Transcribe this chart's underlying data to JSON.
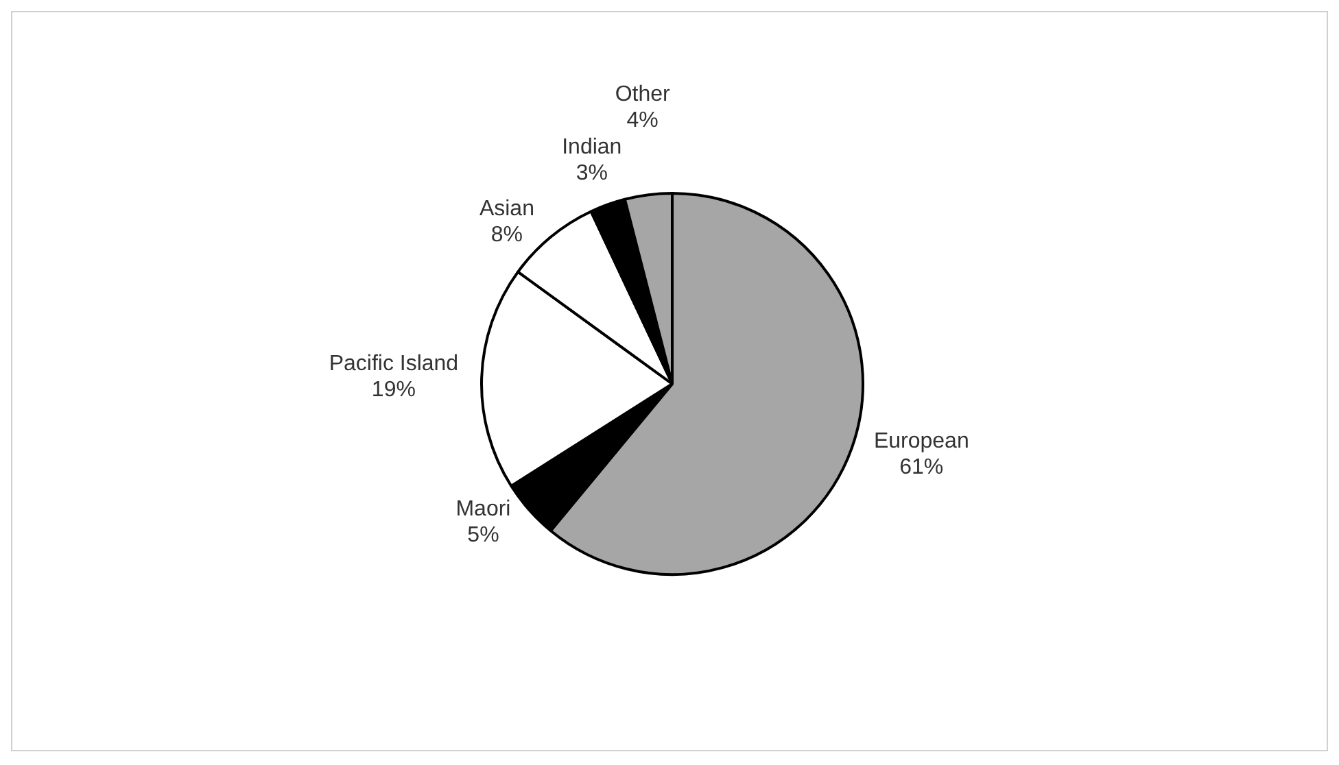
{
  "chart_data": {
    "type": "pie",
    "categories": [
      "European",
      "Maori",
      "Pacific Island",
      "Asian",
      "Indian",
      "Other"
    ],
    "values": [
      61,
      5,
      19,
      8,
      3,
      4
    ],
    "value_labels": [
      "61%",
      "5%",
      "19%",
      "8%",
      "3%",
      "4%"
    ],
    "colors": [
      "#a6a6a6",
      "#000000",
      "#ffffff",
      "#ffffff",
      "#000000",
      "#a6a6a6"
    ],
    "legend": false
  }
}
